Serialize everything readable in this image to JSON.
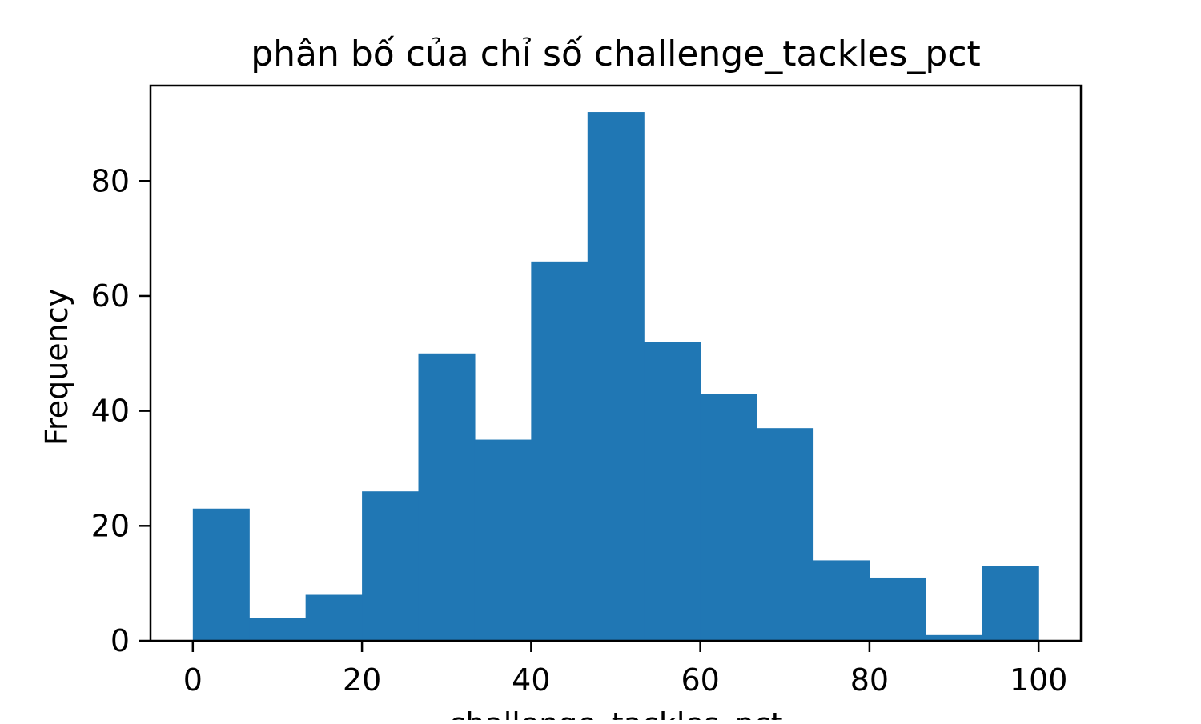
{
  "chart_data": {
    "type": "bar",
    "title": "phân bố của chỉ số challenge_tackles_pct",
    "xlabel": "challenge_tackles_pct",
    "ylabel": "Frequency",
    "bin_edges": [
      0,
      6.667,
      13.333,
      20,
      26.667,
      33.333,
      40,
      46.667,
      53.333,
      60,
      66.667,
      73.333,
      80,
      86.667,
      93.333,
      100
    ],
    "values": [
      23,
      4,
      8,
      26,
      50,
      35,
      66,
      92,
      52,
      43,
      37,
      14,
      11,
      1,
      13
    ],
    "xlim": [
      -5,
      105
    ],
    "ylim": [
      0,
      96.6
    ],
    "xticks": [
      0,
      20,
      40,
      60,
      80,
      100
    ],
    "yticks": [
      0,
      20,
      40,
      60,
      80
    ],
    "grid": false,
    "bar_color": "#2077b4"
  }
}
